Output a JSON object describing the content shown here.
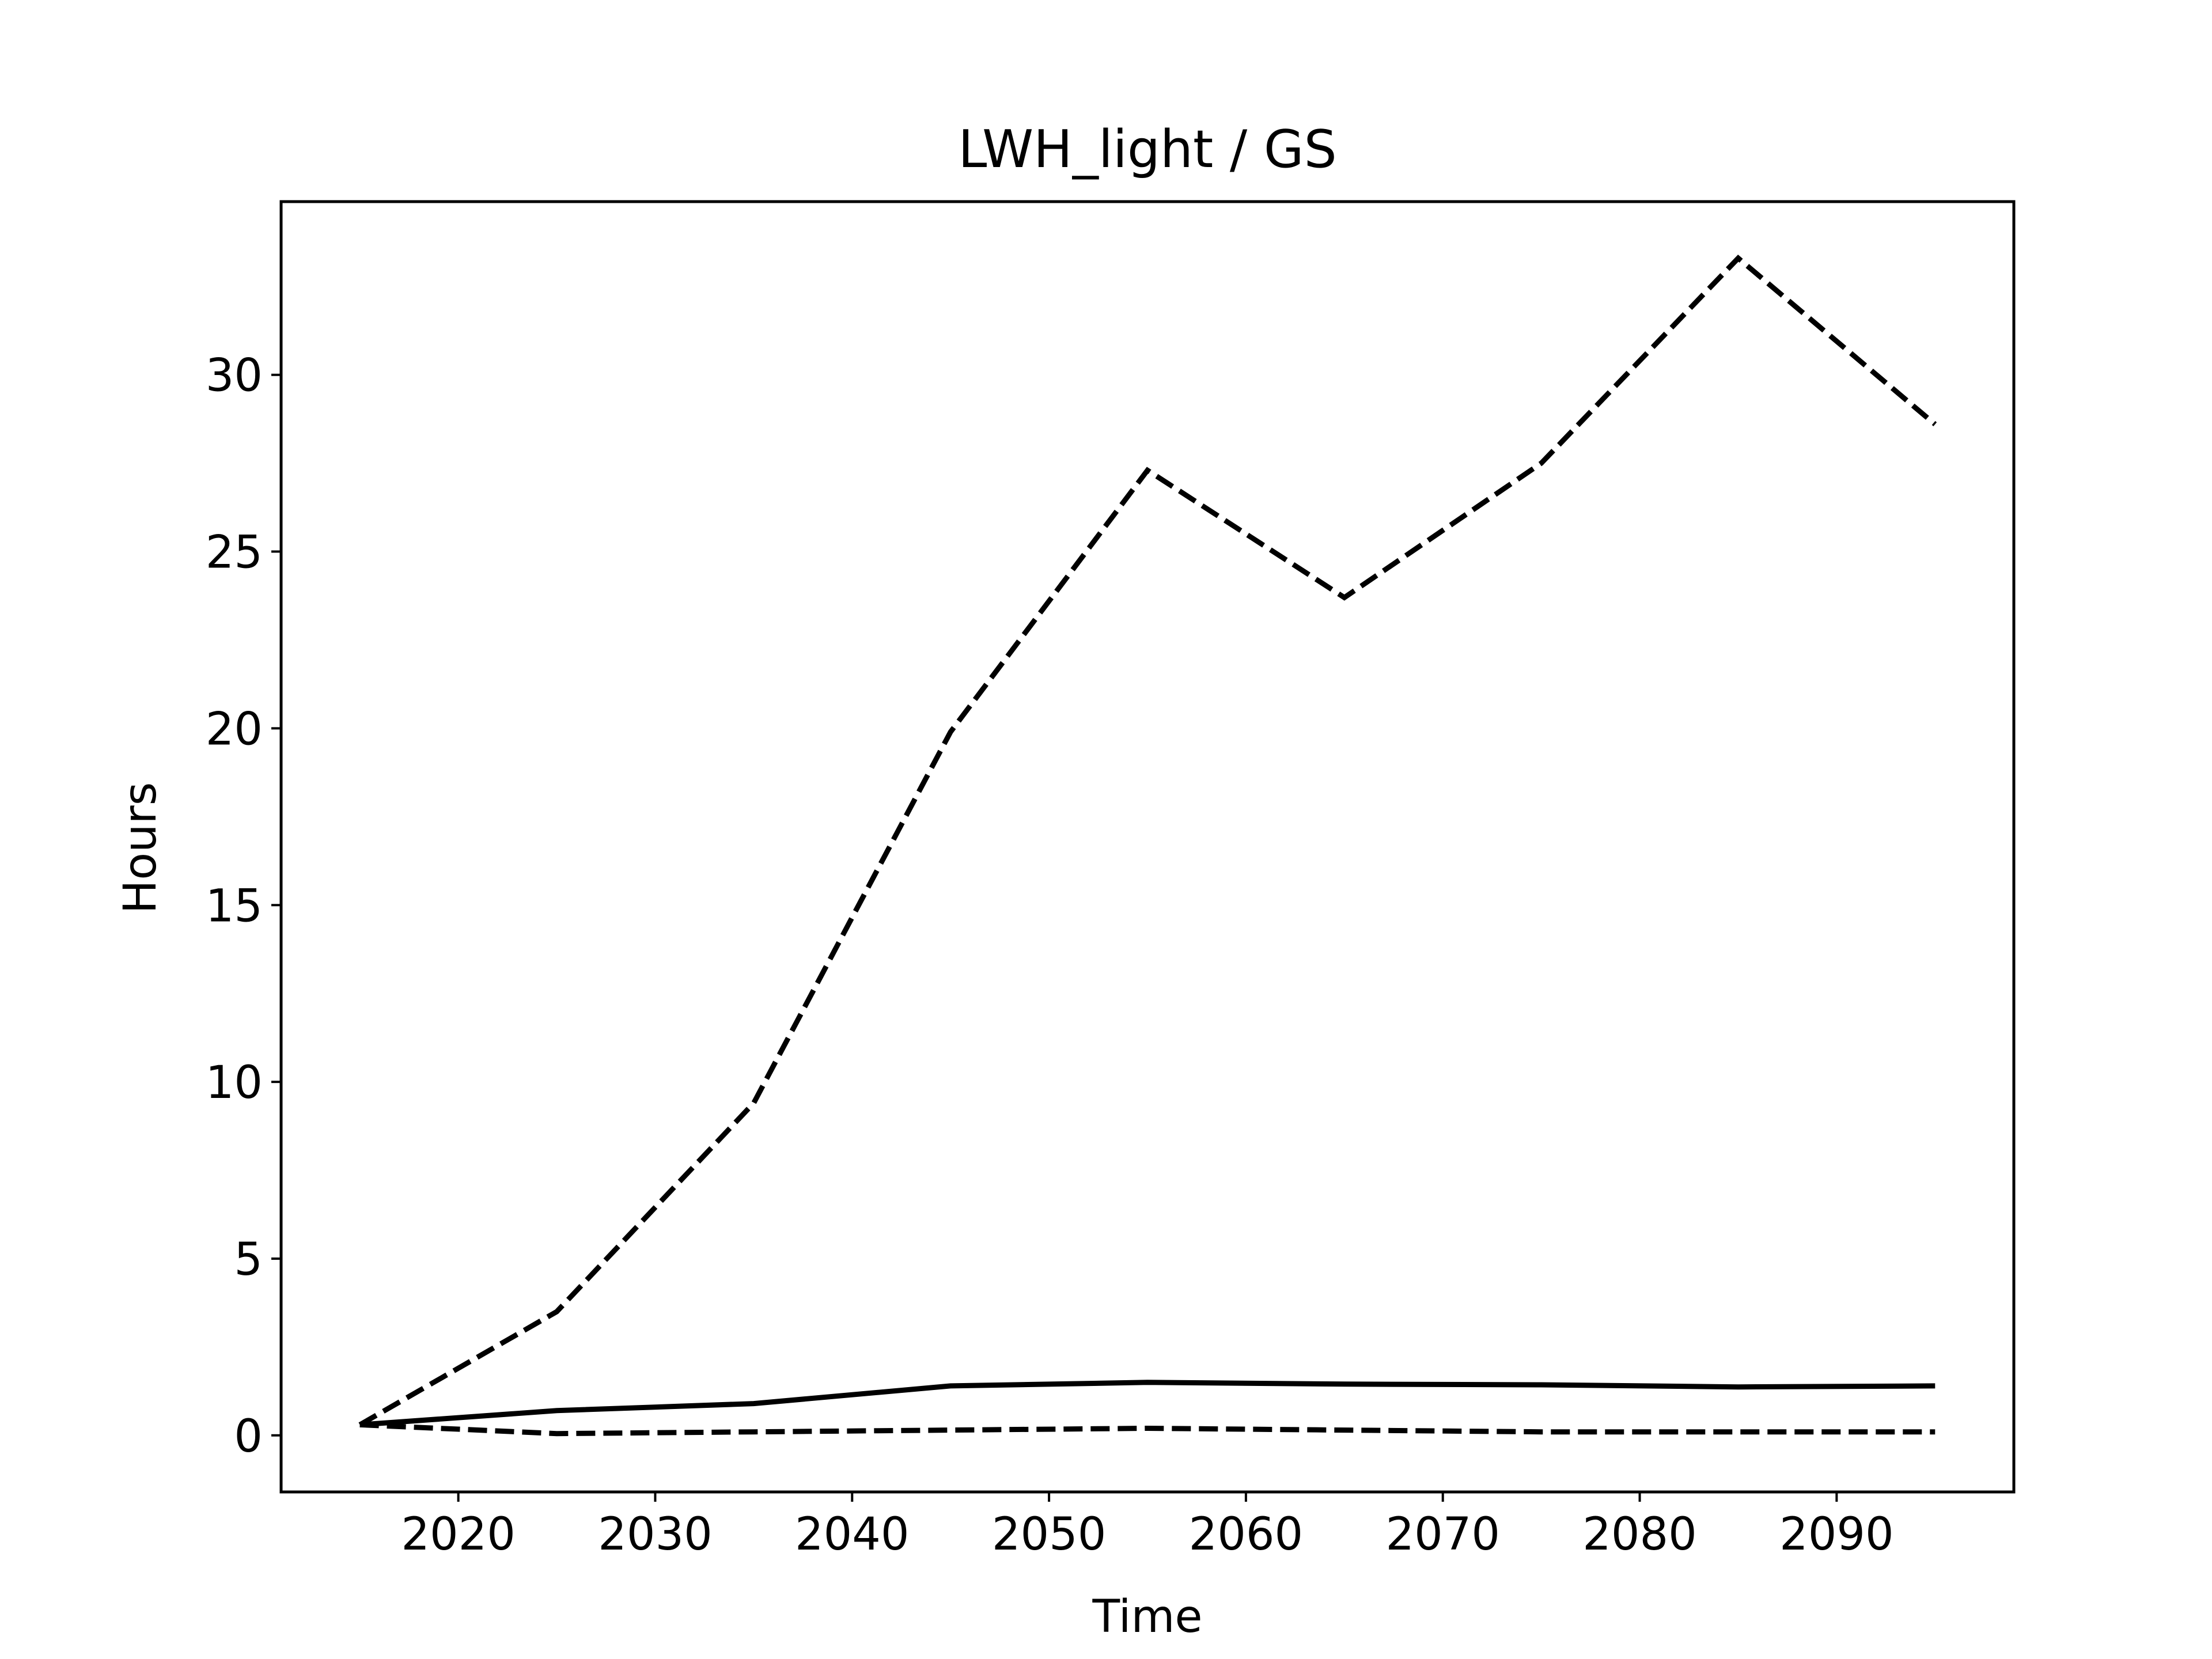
{
  "chart_data": {
    "type": "line",
    "title": "LWH_light / GS",
    "xlabel": "Time",
    "ylabel": "Hours",
    "xlim": [
      2011,
      2099
    ],
    "ylim": [
      -1.6,
      34.9
    ],
    "xticks": [
      2020,
      2030,
      2040,
      2050,
      2060,
      2070,
      2080,
      2090
    ],
    "yticks": [
      0,
      5,
      10,
      15,
      20,
      25,
      30
    ],
    "grid": false,
    "legend": "none",
    "x": [
      2015,
      2025,
      2035,
      2045,
      2055,
      2065,
      2075,
      2085,
      2095
    ],
    "series": [
      {
        "style": "dashed",
        "color": "#000000",
        "values": [
          0.3,
          3.5,
          9.4,
          19.9,
          27.3,
          23.7,
          27.5,
          33.3,
          28.6
        ]
      },
      {
        "style": "solid",
        "color": "#000000",
        "values": [
          0.3,
          0.7,
          0.9,
          1.4,
          1.5,
          1.45,
          1.43,
          1.37,
          1.4
        ]
      },
      {
        "style": "dashed",
        "color": "#000000",
        "values": [
          0.3,
          0.05,
          0.1,
          0.15,
          0.2,
          0.15,
          0.1,
          0.1,
          0.1
        ]
      }
    ]
  }
}
